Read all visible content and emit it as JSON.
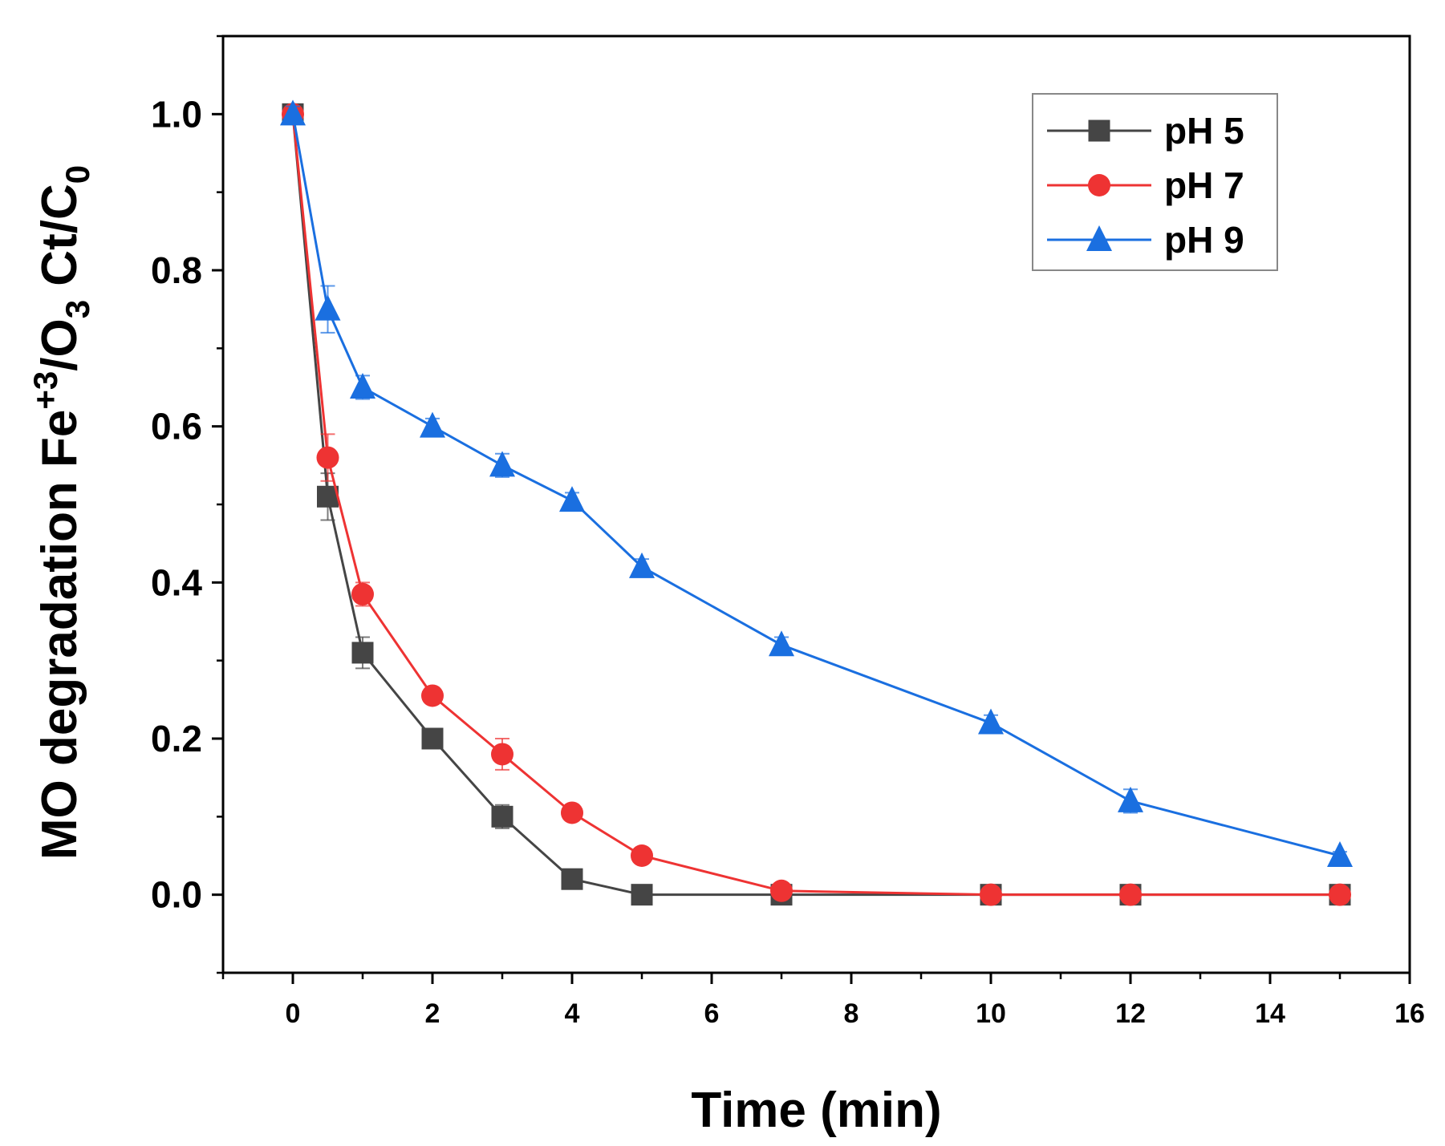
{
  "chart_data": {
    "type": "line",
    "title": "",
    "xlabel": "Time (min)",
    "ylabel": {
      "prefix": "MO degradation Fe",
      "sup": "+3",
      "mid": "/O",
      "sub": "3",
      "mid2": " Ct/C",
      "sub2": "0"
    },
    "xlim": [
      -1,
      16
    ],
    "ylim": [
      -0.1,
      1.1
    ],
    "xticks": [
      0,
      2,
      4,
      6,
      8,
      10,
      12,
      14,
      16
    ],
    "xtick_labels": [
      "0",
      "2",
      "4",
      "6",
      "8",
      "10",
      "12",
      "14",
      "16"
    ],
    "yticks": [
      0.0,
      0.2,
      0.4,
      0.6,
      0.8,
      1.0
    ],
    "ytick_labels": [
      "0.0",
      "0.2",
      "0.4",
      "0.6",
      "0.8",
      "1.0"
    ],
    "grid": false,
    "legend_position": "top-right",
    "series": [
      {
        "name": "pH 5",
        "color": "#454545",
        "marker": "square",
        "x": [
          0,
          0.5,
          1,
          2,
          3,
          4,
          5,
          7,
          10,
          12,
          15
        ],
        "y": [
          1.0,
          0.51,
          0.31,
          0.2,
          0.1,
          0.02,
          0.0,
          0.0,
          0.0,
          0.0,
          0.0
        ],
        "err": [
          0.01,
          0.03,
          0.02,
          0.01,
          0.015,
          0.01,
          0.005,
          0.005,
          0.005,
          0.01,
          0.005
        ]
      },
      {
        "name": "pH 7",
        "color": "#ee3333",
        "marker": "circle",
        "x": [
          0,
          0.5,
          1,
          2,
          3,
          4,
          5,
          7,
          10,
          12,
          15
        ],
        "y": [
          1.0,
          0.56,
          0.385,
          0.255,
          0.18,
          0.105,
          0.05,
          0.005,
          0.0,
          0.0,
          0.0
        ],
        "err": [
          0.01,
          0.03,
          0.015,
          0.01,
          0.02,
          0.01,
          0.005,
          0.005,
          0.005,
          0.005,
          0.005
        ]
      },
      {
        "name": "pH 9",
        "color": "#1a6fe0",
        "marker": "triangle",
        "x": [
          0,
          0.5,
          1,
          2,
          3,
          4,
          5,
          7,
          10,
          12,
          15
        ],
        "y": [
          1.0,
          0.75,
          0.65,
          0.6,
          0.55,
          0.505,
          0.42,
          0.32,
          0.22,
          0.12,
          0.05
        ],
        "err": [
          0.01,
          0.03,
          0.015,
          0.01,
          0.015,
          0.01,
          0.01,
          0.01,
          0.01,
          0.015,
          0.005
        ]
      }
    ]
  }
}
